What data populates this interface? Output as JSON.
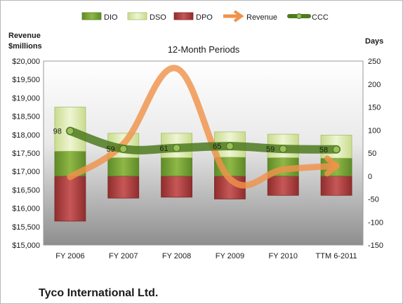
{
  "company_name": "Tyco International Ltd.",
  "chart_data": {
    "type": "bar",
    "title": "12-Month Periods",
    "ylabel_left": [
      "Revenue",
      "$millions"
    ],
    "ylabel_right": "Days",
    "categories": [
      "FY 2006",
      "FY 2007",
      "FY 2008",
      "FY 2009",
      "FY 2010",
      "TTM 6-2011"
    ],
    "left_axis": {
      "ylim": [
        15000,
        20000
      ],
      "ticks": [
        "$15,000",
        "$15,500",
        "$16,000",
        "$16,500",
        "$17,000",
        "$17,500",
        "$18,000",
        "$18,500",
        "$19,000",
        "$19,500",
        "$20,000"
      ]
    },
    "right_axis": {
      "ylim": [
        -150,
        250
      ],
      "ticks": [
        "-150",
        "-100",
        "-50",
        "0",
        "50",
        "100",
        "150",
        "200",
        "250"
      ]
    },
    "legend_position": "top",
    "series": [
      {
        "name": "DIO",
        "kind": "stacked-bar",
        "axis": "right",
        "color": "#7ea33a",
        "values": [
          54,
          40,
          40,
          41,
          40,
          39
        ]
      },
      {
        "name": "DSO",
        "kind": "stacked-bar",
        "axis": "right",
        "color": "#d7e6a8",
        "values": [
          96,
          53,
          53,
          55,
          51,
          50
        ]
      },
      {
        "name": "DPO",
        "kind": "stacked-bar-negative",
        "axis": "right",
        "color": "#b04646",
        "values": [
          -98,
          -48,
          -46,
          -50,
          -42,
          -42
        ]
      },
      {
        "name": "Revenue",
        "kind": "line",
        "axis": "left",
        "color": "#f0924a",
        "values": [
          16850,
          17750,
          19800,
          16800,
          17050,
          17150
        ]
      },
      {
        "name": "CCC",
        "kind": "line",
        "axis": "right",
        "color": "#4d7a1f",
        "values": [
          98,
          59,
          61,
          65,
          59,
          58
        ],
        "labels": [
          "98",
          "59",
          "61",
          "65",
          "59",
          "58"
        ]
      }
    ]
  }
}
